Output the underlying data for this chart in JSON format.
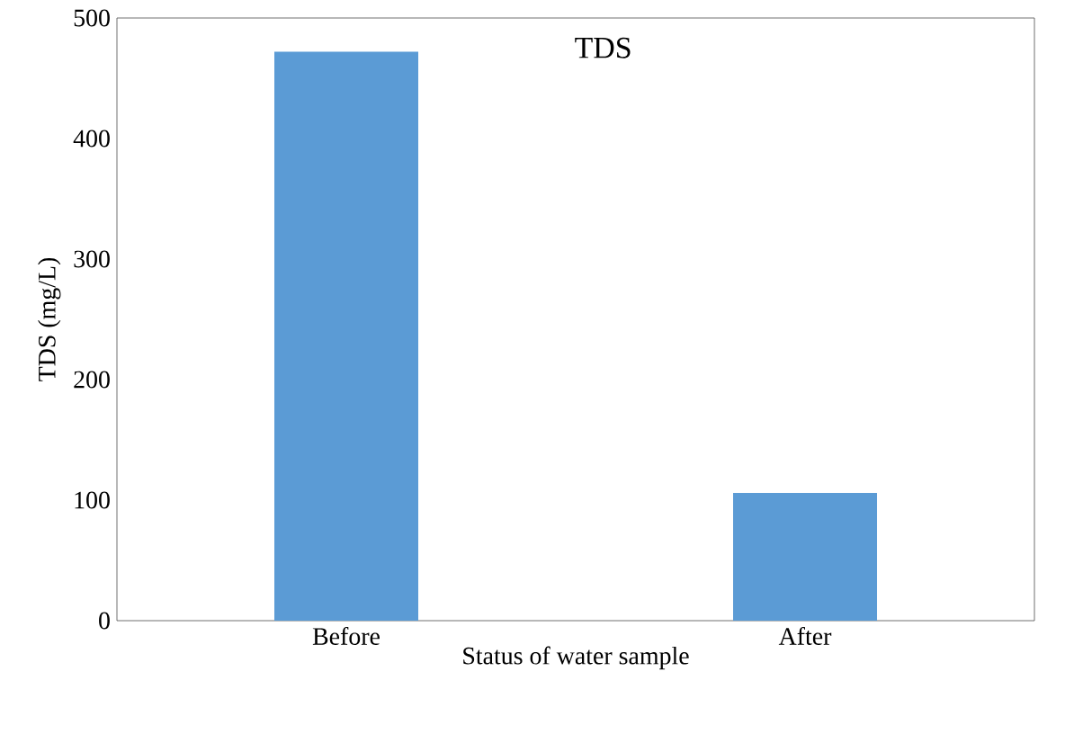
{
  "chart_data": {
    "type": "bar",
    "title": "TDS",
    "xlabel": "Status of water sample",
    "ylabel": "TDS (mg/L)",
    "categories": [
      "Before",
      "After"
    ],
    "values": [
      472,
      106
    ],
    "color": "#5b9bd5",
    "ylim": [
      0,
      500
    ],
    "yticks": [
      0,
      100,
      200,
      300,
      400,
      500
    ],
    "grid": false
  }
}
